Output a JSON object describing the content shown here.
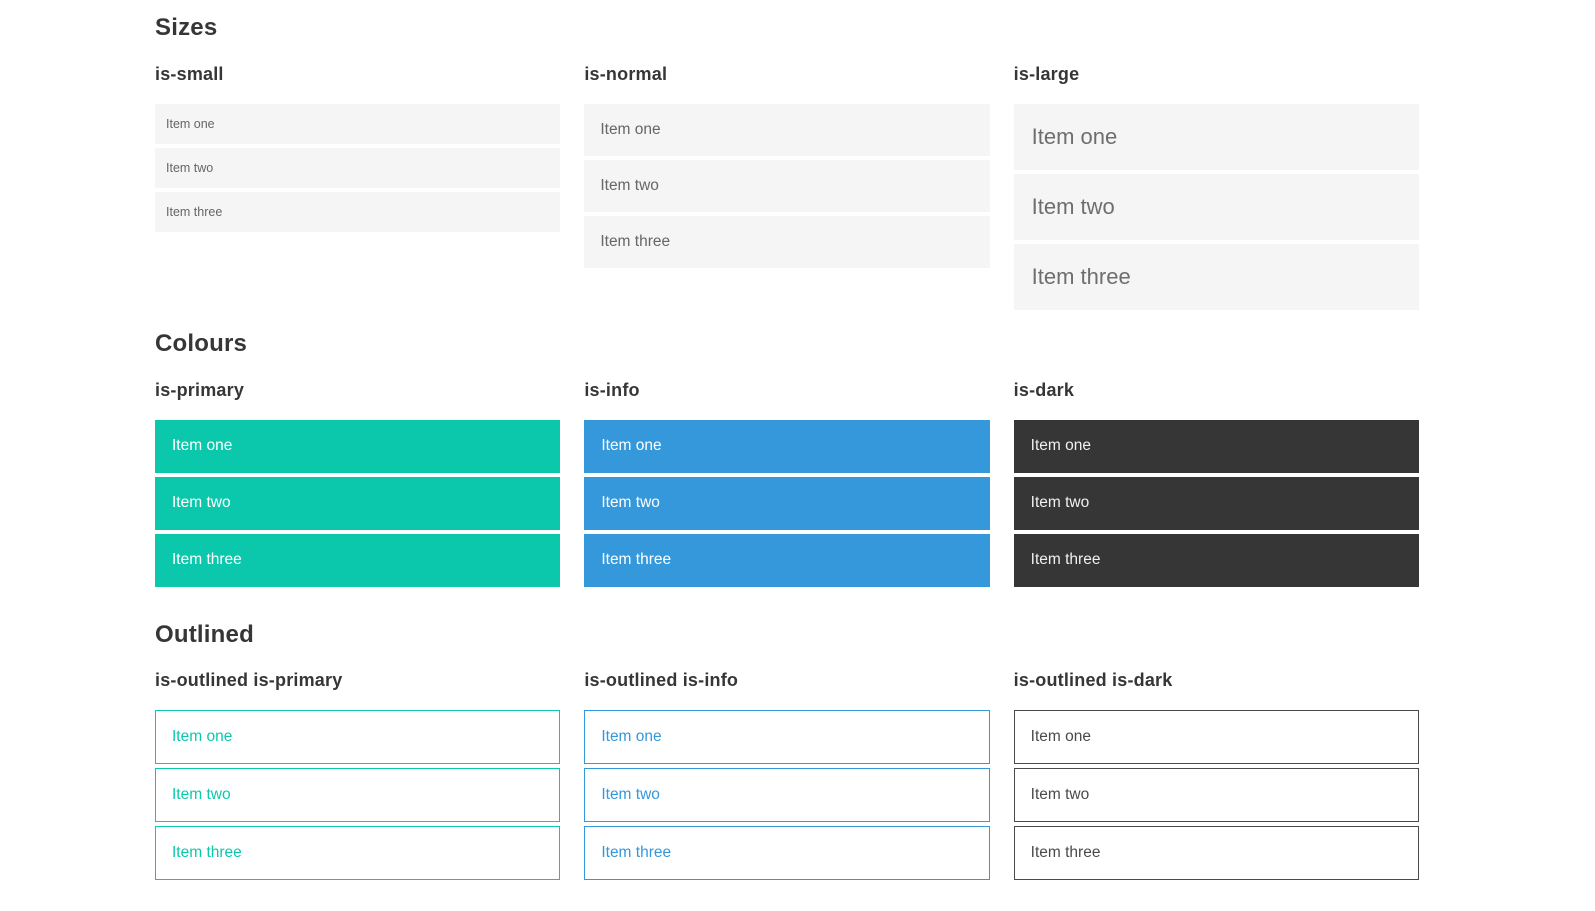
{
  "colors": {
    "primary": "#0bc8ac",
    "info": "#3498db",
    "dark": "#363636",
    "item_bg": "#f5f5f5",
    "heading_text": "#363636",
    "muted_text": "#666666",
    "white_text": "#ffffff"
  },
  "sections": [
    {
      "title": "Sizes",
      "variants": [
        {
          "label": "is-small",
          "items": [
            "Item one",
            "Item two",
            "Item three"
          ]
        },
        {
          "label": "is-normal",
          "items": [
            "Item one",
            "Item two",
            "Item three"
          ]
        },
        {
          "label": "is-large",
          "items": [
            "Item one",
            "Item two",
            "Item three"
          ]
        }
      ]
    },
    {
      "title": "Colours",
      "variants": [
        {
          "label": "is-primary",
          "items": [
            "Item one",
            "Item two",
            "Item three"
          ]
        },
        {
          "label": "is-info",
          "items": [
            "Item one",
            "Item two",
            "Item three"
          ]
        },
        {
          "label": "is-dark",
          "items": [
            "Item one",
            "Item two",
            "Item three"
          ]
        }
      ]
    },
    {
      "title": "Outlined",
      "variants": [
        {
          "label": "is-outlined is-primary",
          "items": [
            "Item one",
            "Item two",
            "Item three"
          ]
        },
        {
          "label": "is-outlined is-info",
          "items": [
            "Item one",
            "Item two",
            "Item three"
          ]
        },
        {
          "label": "is-outlined is-dark",
          "items": [
            "Item one",
            "Item two",
            "Item three"
          ]
        }
      ]
    }
  ]
}
